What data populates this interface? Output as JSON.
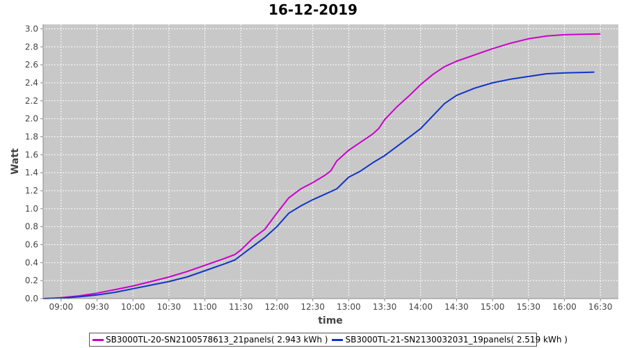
{
  "chart_data": {
    "type": "line",
    "title": "16-12-2019",
    "xlabel": "time",
    "ylabel": "Watt",
    "xlim": [
      "08:45",
      "16:45"
    ],
    "ylim": [
      0,
      3.05
    ],
    "grid": true,
    "legend_position": "bottom",
    "x_ticks": [
      "09:00",
      "09:30",
      "10:00",
      "10:30",
      "11:00",
      "11:30",
      "12:00",
      "12:30",
      "13:00",
      "13:30",
      "14:00",
      "14:30",
      "15:00",
      "15:30",
      "16:00",
      "16:30"
    ],
    "y_ticks": [
      "0.0",
      "0.2",
      "0.4",
      "0.6",
      "0.8",
      "1.0",
      "1.2",
      "1.4",
      "1.6",
      "1.8",
      "2.0",
      "2.2",
      "2.4",
      "2.6",
      "2.8",
      "3.0"
    ],
    "series": [
      {
        "name": "SB3000TL-20-SN2100578613_21panels( 2.943 kWh )",
        "color": "#cc00cc",
        "x": [
          "08:45",
          "09:00",
          "09:15",
          "09:30",
          "09:45",
          "10:00",
          "10:15",
          "10:30",
          "10:45",
          "11:00",
          "11:15",
          "11:25",
          "11:30",
          "11:40",
          "11:50",
          "12:00",
          "12:10",
          "12:20",
          "12:30",
          "12:40",
          "12:45",
          "12:50",
          "13:00",
          "13:10",
          "13:20",
          "13:25",
          "13:30",
          "13:40",
          "13:50",
          "14:00",
          "14:10",
          "14:20",
          "14:30",
          "14:45",
          "15:00",
          "15:15",
          "15:30",
          "15:45",
          "16:00",
          "16:15",
          "16:30"
        ],
        "y": [
          0.0,
          0.01,
          0.03,
          0.06,
          0.1,
          0.14,
          0.19,
          0.24,
          0.3,
          0.37,
          0.44,
          0.49,
          0.54,
          0.67,
          0.77,
          0.95,
          1.12,
          1.22,
          1.29,
          1.37,
          1.42,
          1.53,
          1.65,
          1.74,
          1.83,
          1.89,
          1.99,
          2.13,
          2.25,
          2.38,
          2.49,
          2.58,
          2.64,
          2.71,
          2.78,
          2.84,
          2.89,
          2.92,
          2.935,
          2.94,
          2.943
        ]
      },
      {
        "name": "SB3000TL-21-SN2130032031_19panels( 2.519 kWh )",
        "color": "#1034c8",
        "x": [
          "08:45",
          "09:00",
          "09:15",
          "09:30",
          "09:45",
          "10:00",
          "10:15",
          "10:30",
          "10:45",
          "11:00",
          "11:15",
          "11:25",
          "11:30",
          "11:40",
          "11:50",
          "12:00",
          "12:10",
          "12:20",
          "12:30",
          "12:40",
          "12:50",
          "13:00",
          "13:10",
          "13:20",
          "13:30",
          "13:40",
          "13:50",
          "14:00",
          "14:10",
          "14:20",
          "14:30",
          "14:45",
          "15:00",
          "15:15",
          "15:30",
          "15:45",
          "16:00",
          "16:15",
          "16:25"
        ],
        "y": [
          0.0,
          0.005,
          0.02,
          0.04,
          0.07,
          0.11,
          0.15,
          0.19,
          0.24,
          0.31,
          0.38,
          0.43,
          0.48,
          0.58,
          0.68,
          0.8,
          0.95,
          1.03,
          1.1,
          1.16,
          1.22,
          1.35,
          1.42,
          1.51,
          1.59,
          1.69,
          1.79,
          1.89,
          2.03,
          2.17,
          2.26,
          2.34,
          2.4,
          2.44,
          2.47,
          2.5,
          2.51,
          2.515,
          2.519
        ]
      }
    ]
  }
}
